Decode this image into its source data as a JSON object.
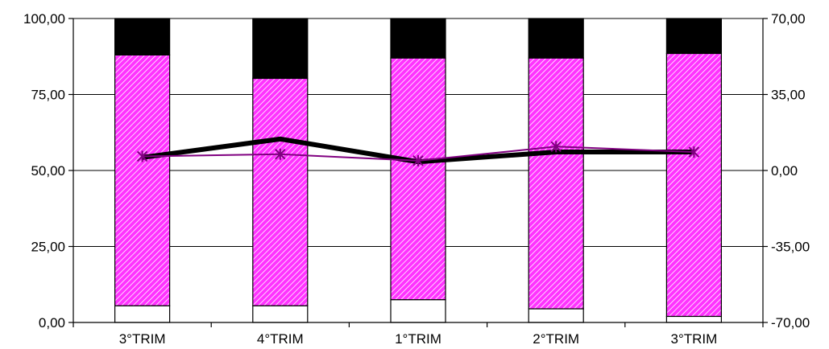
{
  "chart_data": {
    "type": "bar",
    "categories": [
      "3°TRIM",
      "4°TRIM",
      "1°TRIM",
      "2°TRIM",
      "3°TRIM"
    ],
    "y_left": {
      "ylim": [
        0,
        100
      ],
      "ticks": [
        0,
        25,
        50,
        75,
        100
      ],
      "tick_labels": [
        "0,00",
        "25,00",
        "50,00",
        "75,00",
        "100,00"
      ]
    },
    "y_right": {
      "ylim": [
        -70,
        70
      ],
      "ticks": [
        -70,
        -35,
        0,
        35,
        70
      ],
      "tick_labels": [
        "-70,00",
        "-35,00",
        "0,00",
        "35,00",
        "70,00"
      ]
    },
    "bar_series": [
      {
        "values": [
          5.5,
          5.5,
          7.5,
          4.5,
          2.0
        ],
        "color": "#ffffff"
      },
      {
        "values": [
          82.5,
          74.8,
          79.5,
          82.5,
          86.5
        ],
        "color": "#ff33ff",
        "pattern": "diagonal-hatch"
      },
      {
        "values": [
          12.0,
          19.7,
          13.0,
          13.0,
          11.5
        ],
        "color": "#000000"
      }
    ],
    "line_series": [
      {
        "axis": "right",
        "values": [
          6.0,
          14.5,
          4.0,
          8.5,
          8.5
        ],
        "color": "#000000",
        "style": "thick"
      },
      {
        "axis": "right",
        "values": [
          6.5,
          7.5,
          4.5,
          11.0,
          8.5
        ],
        "color": "#800080",
        "style": "thin",
        "marker": "star"
      }
    ],
    "grid": true
  }
}
